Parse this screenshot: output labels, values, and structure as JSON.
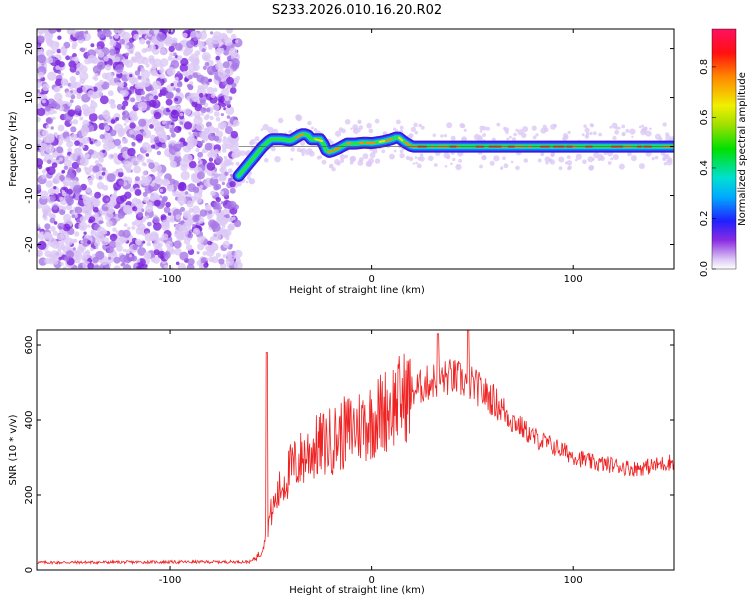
{
  "title": "S233.2026.010.16.20.R02",
  "chart_data": [
    {
      "type": "heatmap",
      "xlabel": "Height of straight line (km)",
      "ylabel": "Frequency (Hz)",
      "xlim": [
        -166,
        150
      ],
      "ylim": [
        -25,
        24
      ],
      "xticks": [
        -100,
        0,
        100
      ],
      "yticks": [
        20,
        10,
        0,
        -10,
        -20
      ],
      "noise_region_x": [
        -166,
        -66
      ],
      "signal_track": {
        "x": [
          -66,
          -62,
          -58,
          -54,
          -50,
          -45,
          -40,
          -35,
          -32,
          -30,
          -27,
          -25,
          -22,
          -20,
          -17,
          -12,
          -8,
          -4,
          0,
          5,
          10,
          13,
          16,
          20,
          30,
          50,
          70,
          100,
          130,
          150
        ],
        "freq": [
          -6,
          -4,
          -2,
          0,
          1.5,
          1.5,
          1.2,
          2.5,
          2.5,
          1.5,
          1.5,
          1.5,
          -1.2,
          -1,
          -0.5,
          0.6,
          0.6,
          0.8,
          0.7,
          1.0,
          1.5,
          2,
          1,
          0,
          0,
          0,
          0,
          0,
          0,
          0
        ]
      },
      "colorbar": {
        "label": "Normalized spectral amplitude",
        "range": [
          0,
          0.95
        ],
        "ticks": [
          0.0,
          0.2,
          0.4,
          0.6,
          0.8
        ]
      }
    },
    {
      "type": "line",
      "xlabel": "Height of straight line (km)",
      "ylabel": "SNR (10 * v/v)",
      "xlim": [
        -166,
        150
      ],
      "ylim": [
        0,
        640
      ],
      "xticks": [
        -100,
        0,
        100
      ],
      "yticks": [
        600,
        400,
        200,
        0
      ],
      "color": "#ee2222",
      "profile": {
        "x": [
          -166,
          -60,
          -55,
          -50,
          -45,
          -40,
          -30,
          -20,
          -10,
          0,
          10,
          20,
          30,
          40,
          50,
          60,
          70,
          80,
          90,
          100,
          110,
          120,
          130,
          140,
          150
        ],
        "snr": [
          20,
          22,
          45,
          150,
          220,
          270,
          320,
          345,
          375,
          400,
          440,
          475,
          505,
          515,
          495,
          455,
          400,
          355,
          330,
          305,
          285,
          280,
          270,
          278,
          290
        ]
      },
      "spikes": [
        {
          "x": -52,
          "snr": 580
        },
        {
          "x": 33,
          "snr": 630
        },
        {
          "x": 48,
          "snr": 640
        }
      ]
    }
  ]
}
